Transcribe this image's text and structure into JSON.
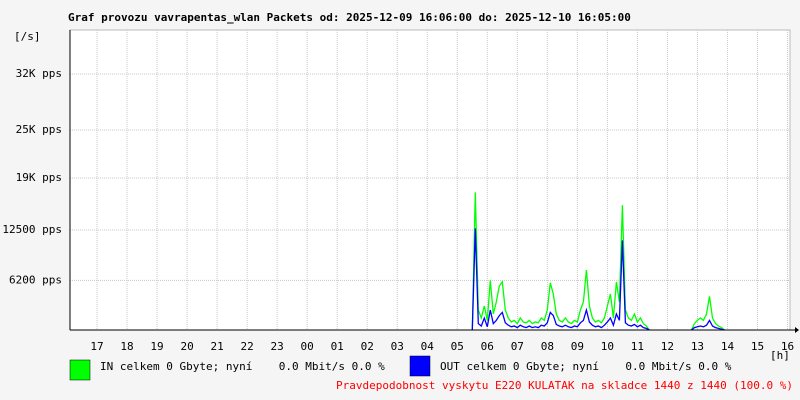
{
  "chart_data": {
    "type": "line",
    "title": "Graf provozu vavrapentas_wlan Packets od: 2025-12-09 16:06:00 do: 2025-12-10 16:05:00",
    "y_unit": "[/s]",
    "x_unit": "[h]",
    "footer": "Pravdepodobnost vyskytu E220 KULATAK na skladce 1440 z 1440 (100.0 %)",
    "grid": true,
    "xlim": [
      16.1,
      40.083
    ],
    "xticks": [
      {
        "value": 17,
        "label": "17"
      },
      {
        "value": 18,
        "label": "18"
      },
      {
        "value": 19,
        "label": "19"
      },
      {
        "value": 20,
        "label": "20"
      },
      {
        "value": 21,
        "label": "21"
      },
      {
        "value": 22,
        "label": "22"
      },
      {
        "value": 23,
        "label": "23"
      },
      {
        "value": 24,
        "label": "00"
      },
      {
        "value": 25,
        "label": "01"
      },
      {
        "value": 26,
        "label": "02"
      },
      {
        "value": 27,
        "label": "03"
      },
      {
        "value": 28,
        "label": "04"
      },
      {
        "value": 29,
        "label": "05"
      },
      {
        "value": 30,
        "label": "06"
      },
      {
        "value": 31,
        "label": "07"
      },
      {
        "value": 32,
        "label": "08"
      },
      {
        "value": 33,
        "label": "09"
      },
      {
        "value": 34,
        "label": "10"
      },
      {
        "value": 35,
        "label": "11"
      },
      {
        "value": 36,
        "label": "12"
      },
      {
        "value": 37,
        "label": "13"
      },
      {
        "value": 38,
        "label": "14"
      },
      {
        "value": 39,
        "label": "15"
      },
      {
        "value": 40,
        "label": "16"
      }
    ],
    "ylim": [
      0,
      37500
    ],
    "yticks": [
      {
        "value": 6200,
        "label": "6200 pps"
      },
      {
        "value": 12500,
        "label": "12500 pps"
      },
      {
        "value": 19000,
        "label": "19K pps"
      },
      {
        "value": 25000,
        "label": "25K pps"
      },
      {
        "value": 32000,
        "label": "32K pps"
      }
    ],
    "x": [
      29.5,
      29.6,
      29.7,
      29.8,
      29.9,
      30.0,
      30.1,
      30.2,
      30.3,
      30.4,
      30.5,
      30.6,
      30.7,
      30.8,
      30.9,
      31.0,
      31.1,
      31.2,
      31.3,
      31.4,
      31.5,
      31.6,
      31.7,
      31.8,
      31.9,
      32.0,
      32.1,
      32.2,
      32.3,
      32.4,
      32.5,
      32.6,
      32.7,
      32.8,
      32.9,
      33.0,
      33.1,
      33.2,
      33.3,
      33.4,
      33.5,
      33.6,
      33.7,
      33.8,
      33.9,
      34.0,
      34.1,
      34.2,
      34.3,
      34.4,
      34.5,
      34.6,
      34.7,
      34.8,
      34.9,
      35.0,
      35.1,
      35.2,
      35.3,
      35.4,
      35.5,
      36.8,
      36.9,
      37.0,
      37.1,
      37.2,
      37.3,
      37.4,
      37.5,
      37.6,
      37.7,
      37.8,
      37.9
    ],
    "series": [
      {
        "name": "IN celkem 0 Gbyte; nyní    0.0 Mbit/s 0.0 %",
        "color": "#00ff00",
        "values": [
          0,
          17200,
          2500,
          1500,
          3000,
          1200,
          6200,
          2000,
          3500,
          5500,
          6000,
          2500,
          1500,
          1000,
          1200,
          800,
          1500,
          1000,
          900,
          1200,
          800,
          1000,
          900,
          1500,
          1200,
          2500,
          5900,
          4500,
          2000,
          1200,
          1000,
          1500,
          1000,
          800,
          1200,
          1000,
          2500,
          3500,
          7500,
          3000,
          1500,
          1000,
          1200,
          900,
          1500,
          3000,
          4500,
          1500,
          6000,
          3500,
          15600,
          2500,
          1500,
          1200,
          2000,
          1000,
          1500,
          800,
          500,
          0,
          null,
          0,
          800,
          1200,
          1500,
          1200,
          2000,
          4200,
          1500,
          800,
          500,
          300,
          0
        ]
      },
      {
        "name": "OUT celkem 0 Gbyte; nyní    0.0 Mbit/s 0.0 %",
        "color": "#0000ff",
        "values": [
          0,
          12700,
          800,
          500,
          1500,
          400,
          2500,
          800,
          1200,
          1800,
          2200,
          900,
          600,
          400,
          500,
          300,
          600,
          400,
          300,
          500,
          300,
          400,
          300,
          600,
          500,
          900,
          2200,
          1800,
          700,
          500,
          400,
          600,
          400,
          300,
          500,
          400,
          900,
          1200,
          2500,
          1000,
          600,
          400,
          500,
          300,
          600,
          1000,
          1500,
          600,
          2000,
          1200,
          11200,
          900,
          600,
          500,
          700,
          400,
          600,
          300,
          200,
          0,
          null,
          0,
          300,
          400,
          500,
          400,
          600,
          1200,
          500,
          300,
          200,
          100,
          0
        ]
      }
    ]
  }
}
